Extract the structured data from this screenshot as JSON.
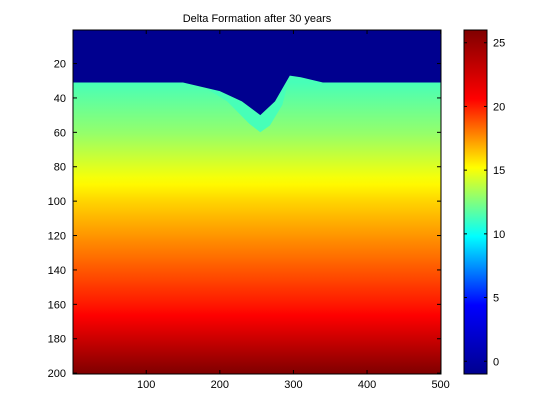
{
  "chart_data": {
    "type": "heatmap",
    "title": "Delta Formation after 30 years",
    "xlabel": "",
    "ylabel": "",
    "xlim": [
      0.5,
      500.5
    ],
    "ylim": [
      200.5,
      0.5
    ],
    "x_ticks": [
      100,
      200,
      300,
      400,
      500
    ],
    "y_ticks": [
      20,
      40,
      60,
      80,
      100,
      120,
      140,
      160,
      180,
      200
    ],
    "colorbar": {
      "colormap": "jet",
      "clim": [
        -1,
        26
      ],
      "ticks": [
        0,
        5,
        10,
        15,
        20,
        25
      ],
      "colors": [
        "#00008f",
        "#0000ff",
        "#00ffff",
        "#ffff00",
        "#ff0000",
        "#800000"
      ]
    },
    "water_value": -1,
    "water_color": "#00008f",
    "shore_row": 31,
    "shore_value": 11,
    "bottom_value": 26,
    "gradient_profile": [
      {
        "row": 31,
        "value": 11
      },
      {
        "row": 60,
        "value": 13
      },
      {
        "row": 100,
        "value": 17
      },
      {
        "row": 160,
        "value": 22
      },
      {
        "row": 200,
        "value": 26
      }
    ],
    "water_boundary": [
      {
        "x": 0,
        "row": 31
      },
      {
        "x": 150,
        "row": 31
      },
      {
        "x": 200,
        "row": 36
      },
      {
        "x": 230,
        "row": 42
      },
      {
        "x": 255,
        "row": 50
      },
      {
        "x": 275,
        "row": 42
      },
      {
        "x": 295,
        "row": 27
      },
      {
        "x": 310,
        "row": 28
      },
      {
        "x": 340,
        "row": 31
      },
      {
        "x": 500,
        "row": 31
      }
    ],
    "delta_region": [
      {
        "x": 150,
        "row": 31
      },
      {
        "x": 200,
        "row": 36
      },
      {
        "x": 230,
        "row": 42
      },
      {
        "x": 255,
        "row": 50
      },
      {
        "x": 275,
        "row": 42
      },
      {
        "x": 295,
        "row": 27
      },
      {
        "x": 285,
        "row": 44
      },
      {
        "x": 268,
        "row": 56
      },
      {
        "x": 255,
        "row": 60
      },
      {
        "x": 240,
        "row": 55
      },
      {
        "x": 210,
        "row": 42
      },
      {
        "x": 180,
        "row": 34
      }
    ]
  }
}
